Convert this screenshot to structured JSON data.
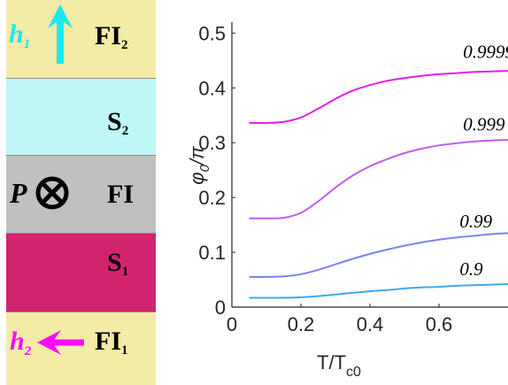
{
  "schematic": {
    "layers": [
      {
        "name": "FI",
        "subscript": "2",
        "color": "#f3eba6"
      },
      {
        "name": "S",
        "subscript": "2",
        "color": "#bff6f8"
      },
      {
        "name": "FI",
        "subscript": "",
        "color": "#c0c0c0"
      },
      {
        "name": "S",
        "subscript": "1",
        "color": "#d2236f"
      },
      {
        "name": "FI",
        "subscript": "1",
        "color": "#f3eba6"
      }
    ],
    "h_top": {
      "letter": "h",
      "subscript": "1",
      "color": "#1ce8ee"
    },
    "h_bottom": {
      "letter": "h",
      "subscript": "2",
      "color": "#ff0aff"
    },
    "polarization": {
      "letter": "P"
    }
  },
  "chart_data": {
    "type": "line",
    "xlabel": "T/T",
    "xlabel_sub": "c0",
    "ylabel": "φ",
    "ylabel_sub": "0",
    "ylabel_den": "π",
    "xlim": [
      0,
      0.8
    ],
    "ylim": [
      0,
      0.52
    ],
    "xticks": [
      "0",
      "0.2",
      "0.4",
      "0.6"
    ],
    "xtick_values": [
      0,
      0.2,
      0.4,
      0.6
    ],
    "yticks": [
      "0",
      "0.1",
      "0.2",
      "0.3",
      "0.4",
      "0.5"
    ],
    "ytick_values": [
      0,
      0.1,
      0.2,
      0.3,
      0.4,
      0.5
    ],
    "grid": false,
    "series": [
      {
        "name": "0.9999",
        "color": "#e61ee6",
        "x": [
          0.05,
          0.1,
          0.15,
          0.2,
          0.25,
          0.3,
          0.35,
          0.4,
          0.45,
          0.5,
          0.55,
          0.6,
          0.65,
          0.7,
          0.75,
          0.8
        ],
        "y": [
          0.336,
          0.336,
          0.338,
          0.346,
          0.362,
          0.38,
          0.395,
          0.405,
          0.413,
          0.418,
          0.422,
          0.425,
          0.427,
          0.429,
          0.43,
          0.431
        ]
      },
      {
        "name": "0.999",
        "color": "#c25cef",
        "x": [
          0.05,
          0.1,
          0.15,
          0.2,
          0.25,
          0.3,
          0.35,
          0.4,
          0.45,
          0.5,
          0.55,
          0.6,
          0.65,
          0.7,
          0.75,
          0.8
        ],
        "y": [
          0.162,
          0.162,
          0.163,
          0.172,
          0.193,
          0.218,
          0.24,
          0.257,
          0.27,
          0.281,
          0.289,
          0.295,
          0.299,
          0.302,
          0.304,
          0.305
        ]
      },
      {
        "name": "0.99",
        "color": "#7b83ef",
        "x": [
          0.05,
          0.1,
          0.15,
          0.2,
          0.25,
          0.3,
          0.35,
          0.4,
          0.45,
          0.5,
          0.55,
          0.6,
          0.65,
          0.7,
          0.75,
          0.8
        ],
        "y": [
          0.055,
          0.055,
          0.056,
          0.06,
          0.068,
          0.078,
          0.088,
          0.097,
          0.105,
          0.112,
          0.118,
          0.123,
          0.127,
          0.13,
          0.133,
          0.135
        ]
      },
      {
        "name": "0.9",
        "color": "#3caaf0",
        "x": [
          0.05,
          0.1,
          0.15,
          0.2,
          0.25,
          0.3,
          0.35,
          0.4,
          0.45,
          0.5,
          0.55,
          0.6,
          0.65,
          0.7,
          0.75,
          0.8
        ],
        "y": [
          0.017,
          0.017,
          0.017,
          0.018,
          0.02,
          0.023,
          0.026,
          0.029,
          0.031,
          0.034,
          0.036,
          0.037,
          0.039,
          0.04,
          0.041,
          0.042
        ]
      }
    ],
    "annotations": [
      {
        "text": "0.9999",
        "x": 0.67,
        "y": 0.455
      },
      {
        "text": "0.999",
        "x": 0.67,
        "y": 0.322
      },
      {
        "text": "0.99",
        "x": 0.66,
        "y": 0.145
      },
      {
        "text": "0.9",
        "x": 0.66,
        "y": 0.058
      }
    ]
  }
}
